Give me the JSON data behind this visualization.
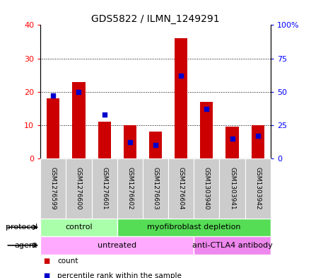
{
  "title": "GDS5822 / ILMN_1249291",
  "samples": [
    "GSM1276599",
    "GSM1276600",
    "GSM1276601",
    "GSM1276602",
    "GSM1276603",
    "GSM1276604",
    "GSM1303940",
    "GSM1303941",
    "GSM1303942"
  ],
  "counts": [
    18,
    23,
    11,
    10,
    8,
    36,
    17,
    9.5,
    10
  ],
  "percentile_ranks": [
    47,
    50,
    33,
    12,
    10,
    62,
    37,
    15,
    17
  ],
  "protocol_groups": [
    {
      "label": "control",
      "start": 0,
      "end": 3,
      "color": "#aaffaa"
    },
    {
      "label": "myofibroblast depletion",
      "start": 3,
      "end": 9,
      "color": "#55dd55"
    }
  ],
  "agent_groups": [
    {
      "label": "untreated",
      "start": 0,
      "end": 6,
      "color": "#ffaaff"
    },
    {
      "label": "anti-CTLA4 antibody",
      "start": 6,
      "end": 9,
      "color": "#ee88ee"
    }
  ],
  "bar_color": "#cc0000",
  "dot_color": "#0000cc",
  "ylim_left": [
    0,
    40
  ],
  "ylim_right": [
    0,
    100
  ],
  "yticks_left": [
    0,
    10,
    20,
    30,
    40
  ],
  "yticks_right": [
    0,
    25,
    50,
    75,
    100
  ],
  "ytick_labels_left": [
    "0",
    "10",
    "20",
    "30",
    "40"
  ],
  "ytick_labels_right": [
    "0",
    "25",
    "50",
    "75",
    "100%"
  ],
  "bar_width": 0.5,
  "bg_color": "#cccccc",
  "protocol_label": "protocol",
  "agent_label": "agent",
  "legend_items": [
    {
      "color": "#cc0000",
      "label": "count"
    },
    {
      "color": "#0000cc",
      "label": "percentile rank within the sample"
    }
  ]
}
